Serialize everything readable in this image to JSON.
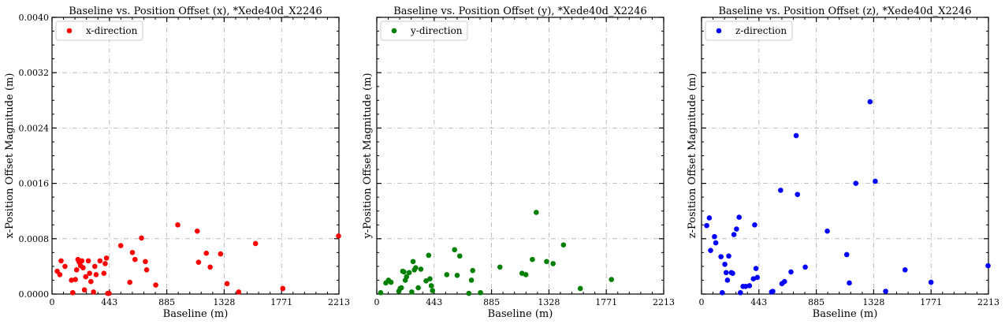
{
  "chart_data": [
    {
      "type": "scatter",
      "title": "Baseline vs. Position Offset (x), *Xede40d_X2246",
      "xlabel": "Baseline (m)",
      "ylabel": "x-Position Offset Magnitude (m)",
      "xlim": [
        0,
        2213
      ],
      "ylim": [
        0,
        0.004
      ],
      "xticks": [
        "0",
        "443",
        "885",
        "1328",
        "1771",
        "2213"
      ],
      "yticks": [
        "0.0000",
        "0.0008",
        "0.0016",
        "0.0024",
        "0.0032",
        "0.0040"
      ],
      "grid": true,
      "legend_position": "top-left",
      "color": "#ff0000",
      "series": [
        {
          "name": "x-direction",
          "x": [
            40,
            60,
            70,
            100,
            150,
            160,
            180,
            190,
            200,
            210,
            220,
            230,
            240,
            250,
            260,
            280,
            290,
            300,
            320,
            330,
            340,
            370,
            400,
            410,
            420,
            430,
            440,
            530,
            600,
            620,
            640,
            690,
            720,
            730,
            800,
            970,
            1120,
            1130,
            1190,
            1220,
            1300,
            1350,
            1440,
            1570,
            1780,
            2210
          ],
          "y": [
            0.00033,
            0.00028,
            0.00048,
            0.0004,
            0.0002,
            2e-05,
            0.00021,
            0.00035,
            0.0005,
            0.00046,
            0.00041,
            0.00048,
            0.00038,
            6e-05,
            0.00025,
            0.00048,
            0.0003,
            0.00018,
            3e-05,
            0.0004,
            0.00028,
            0.00048,
            0.0003,
            0.00044,
            0.00052,
            1e-05,
            1e-05,
            0.0007,
            0.00017,
            0.0006,
            0.0005,
            0.00081,
            0.00047,
            0.00035,
            0.00013,
            0.001,
            0.00091,
            0.00046,
            0.00059,
            0.00039,
            0.00058,
            0.00015,
            3e-05,
            0.00073,
            8e-05,
            0.00084
          ]
        }
      ]
    },
    {
      "type": "scatter",
      "title": "Baseline vs. Position Offset (y), *Xede40d_X2246",
      "xlabel": "Baseline (m)",
      "ylabel": "y-Position Offset Magnitude (m)",
      "xlim": [
        0,
        2213
      ],
      "ylim": [
        0,
        0.004
      ],
      "xticks": [
        "0",
        "443",
        "885",
        "1328",
        "1771",
        "2213"
      ],
      "grid": true,
      "legend_position": "top-left",
      "color": "#008000",
      "series": [
        {
          "name": "y-direction",
          "x": [
            30,
            70,
            90,
            110,
            170,
            180,
            190,
            200,
            210,
            220,
            230,
            250,
            270,
            280,
            290,
            300,
            320,
            340,
            380,
            400,
            410,
            420,
            430,
            540,
            600,
            620,
            640,
            710,
            730,
            740,
            800,
            950,
            1120,
            1150,
            1200,
            1230,
            1310,
            1360,
            1440,
            1570,
            1810
          ],
          "y": [
            2e-05,
            0.00016,
            0.0002,
            0.00017,
            4e-05,
            8e-05,
            9e-05,
            0.00033,
            0.00032,
            0.0002,
            0.00025,
            0.00031,
            3e-05,
            0.00047,
            0.00035,
            0.00038,
            9e-05,
            0.00036,
            0.00019,
            0.00056,
            0.00022,
            0.00012,
            5e-05,
            0.00028,
            0.00064,
            0.00027,
            0.00055,
            1e-05,
            0.0002,
            0.00034,
            2e-05,
            0.00039,
            0.0003,
            0.00028,
            0.0005,
            0.00118,
            0.00047,
            0.00044,
            0.00071,
            8e-05,
            0.00021
          ]
        }
      ]
    },
    {
      "type": "scatter",
      "title": "Baseline vs. Position Offset (z), *Xede40d_X2246",
      "xlabel": "Baseline (m)",
      "ylabel": "z-Position Offset Magnitude (m)",
      "xlim": [
        0,
        2213
      ],
      "ylim": [
        0,
        0.004
      ],
      "xticks": [
        "0",
        "443",
        "885",
        "1328",
        "1771",
        "2213"
      ],
      "grid": true,
      "legend_position": "top-left",
      "color": "#0000ff",
      "series": [
        {
          "name": "z-direction",
          "x": [
            40,
            60,
            70,
            100,
            110,
            150,
            160,
            180,
            190,
            200,
            210,
            230,
            240,
            250,
            270,
            290,
            300,
            320,
            340,
            370,
            400,
            410,
            420,
            430,
            540,
            550,
            610,
            620,
            640,
            690,
            730,
            740,
            800,
            970,
            1120,
            1140,
            1190,
            1300,
            1340,
            1420,
            1570,
            1770,
            2210
          ],
          "y": [
            0.00099,
            0.0011,
            0.00063,
            0.00083,
            0.00074,
            0.00054,
            2e-05,
            0.00043,
            0.00031,
            0.0002,
            0.00055,
            0.00031,
            0.0003,
            0.00086,
            0.00094,
            0.00111,
            2e-05,
            0.00011,
            0.00011,
            0.00012,
            0.00022,
            0.001,
            0.00037,
            0.00024,
            3e-05,
            4e-05,
            0.0015,
            0.00015,
            0.00018,
            0.00032,
            0.00229,
            0.00144,
            0.00039,
            0.00091,
            0.00057,
            0.00016,
            0.0016,
            0.00278,
            0.00163,
            4e-05,
            0.00035,
            0.00017,
            0.00041
          ]
        }
      ]
    }
  ]
}
